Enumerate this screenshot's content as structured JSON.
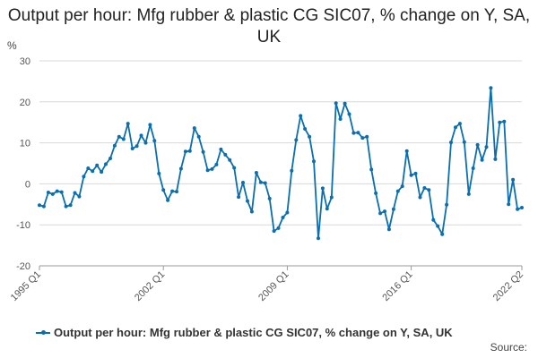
{
  "chart_data": {
    "type": "line",
    "title": "Output per hour: Mfg rubber & plastic CG SIC07, % change on Y, SA, UK",
    "ylabel": "%",
    "xlabel": "",
    "ylim": [
      -20,
      30
    ],
    "yticks": [
      30,
      20,
      10,
      0,
      -10,
      -20
    ],
    "xticks": [
      "1995 Q1",
      "2002 Q1",
      "2009 Q1",
      "2016 Q1",
      "2022 Q2"
    ],
    "grid": true,
    "legend": "bottom",
    "color": "#0a6fb0",
    "series": [
      {
        "name": "Output per hour: Mfg rubber & plastic CG SIC07, % change on Y, SA, UK",
        "values": [
          -5.2,
          -5.5,
          -2.1,
          -2.5,
          -1.8,
          -2.0,
          -5.5,
          -5.2,
          -2.2,
          -3.1,
          1.8,
          3.8,
          3.1,
          4.5,
          2.9,
          4.8,
          6.2,
          9.3,
          11.5,
          10.9,
          14.7,
          8.6,
          9.2,
          11.8,
          10.0,
          14.4,
          10.5,
          2.5,
          -1.5,
          -4.0,
          -1.8,
          -1.9,
          3.7,
          7.9,
          8.0,
          13.6,
          11.5,
          7.8,
          3.3,
          3.6,
          4.7,
          8.4,
          7.1,
          5.8,
          3.9,
          -3.2,
          0.3,
          -4.2,
          -6.8,
          2.7,
          0.4,
          0.2,
          -3.6,
          -11.5,
          -10.8,
          -8.2,
          -7.0,
          3.2,
          10.7,
          16.6,
          13.4,
          11.5,
          5.5,
          -13.3,
          -1.1,
          -6.1,
          -3.3,
          19.7,
          15.8,
          19.6,
          17.0,
          12.4,
          12.5,
          11.2,
          11.5,
          3.5,
          -2.3,
          -7.2,
          -6.7,
          -11.1,
          -6.2,
          -1.8,
          -0.6,
          8.0,
          2.1,
          2.5,
          -3.3,
          -1.0,
          -1.5,
          -8.8,
          -10.3,
          -12.3,
          -5.1,
          10.1,
          13.8,
          14.7,
          10.2,
          -2.5,
          3.8,
          9.5,
          5.8,
          9.0,
          23.4,
          6.0,
          15.0,
          15.2,
          -5.0,
          1.0,
          -6.2,
          -5.8
        ]
      }
    ],
    "source": "Source:"
  }
}
